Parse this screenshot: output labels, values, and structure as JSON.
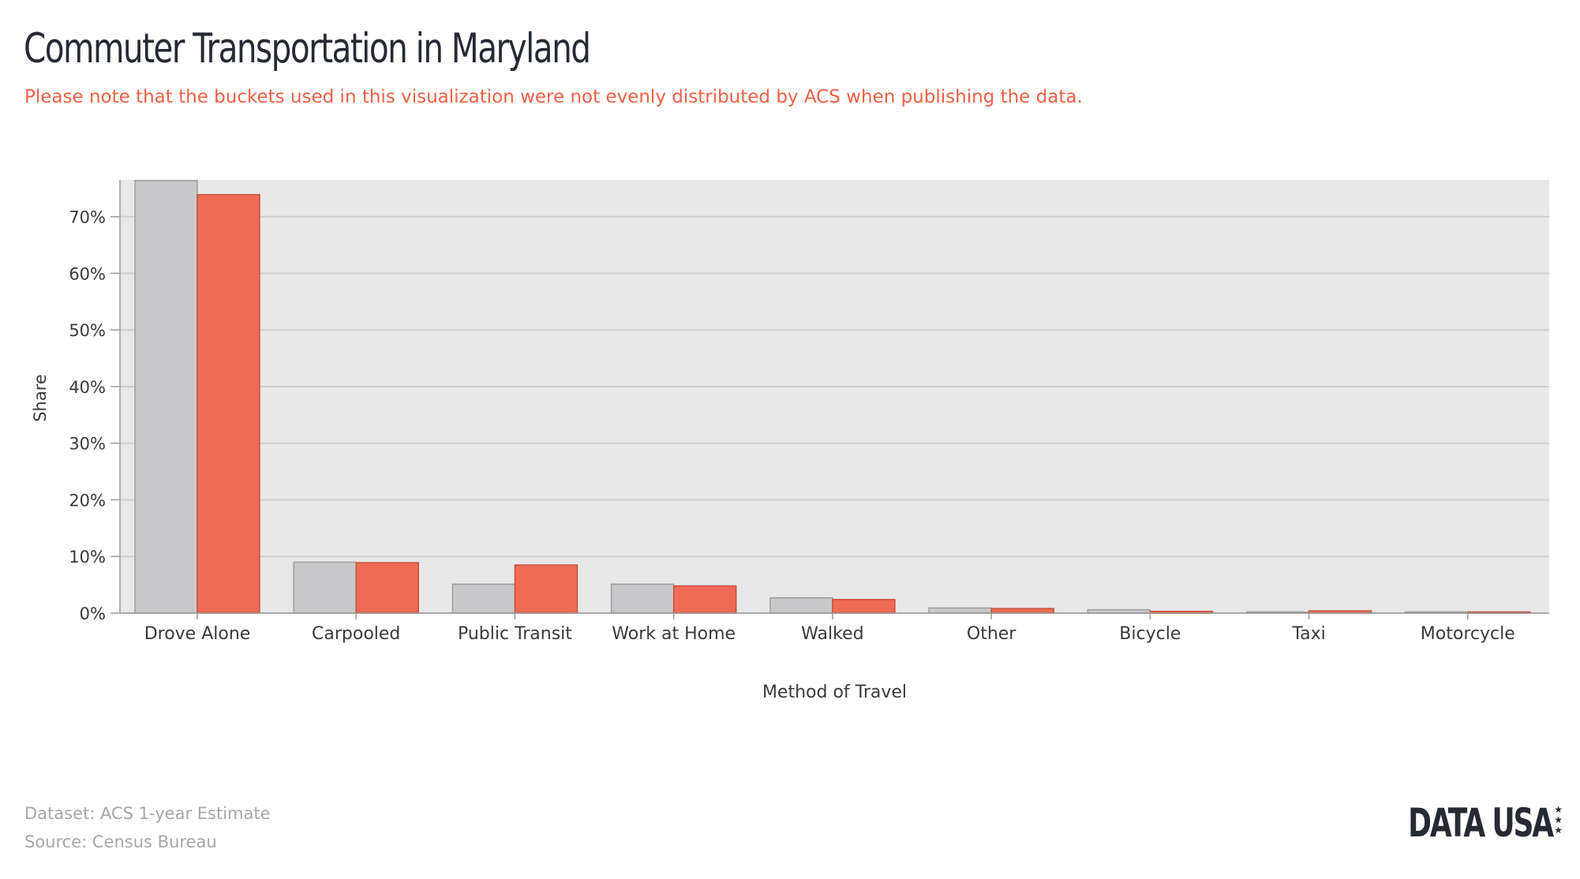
{
  "header": {
    "title": "Commuter Transportation in Maryland",
    "subtitle": "Please note that the buckets used in this visualization were not evenly distributed by ACS when publishing the data."
  },
  "chart_data": {
    "type": "bar",
    "categories": [
      "Drove Alone",
      "Carpooled",
      "Public Transit",
      "Work at Home",
      "Walked",
      "Other",
      "Bicycle",
      "Taxi",
      "Motorcycle"
    ],
    "series": [
      {
        "color": "#c8c8cb",
        "stroke": "#9e9ea1",
        "values": [
          76.4,
          9.0,
          5.1,
          5.1,
          2.7,
          0.9,
          0.6,
          0.2,
          0.2
        ]
      },
      {
        "color": "#ef6b55",
        "stroke": "#c9503c",
        "values": [
          73.9,
          8.9,
          8.5,
          4.8,
          2.4,
          0.8,
          0.3,
          0.4,
          0.2
        ]
      }
    ],
    "xlabel": "Method of Travel",
    "ylabel": "Share",
    "ylim": [
      0,
      76.5
    ],
    "yticks": [
      0,
      10,
      20,
      30,
      40,
      50,
      60,
      70
    ],
    "ytick_labels": [
      "0%",
      "10%",
      "20%",
      "30%",
      "40%",
      "50%",
      "60%",
      "70%"
    ],
    "grid": true,
    "plot_background": "#e8e8e8"
  },
  "footer": {
    "dataset": "Dataset: ACS 1-year Estimate",
    "source": "Source: Census Bureau"
  },
  "brand": {
    "name": "DATA USA",
    "stars": "★★★"
  }
}
